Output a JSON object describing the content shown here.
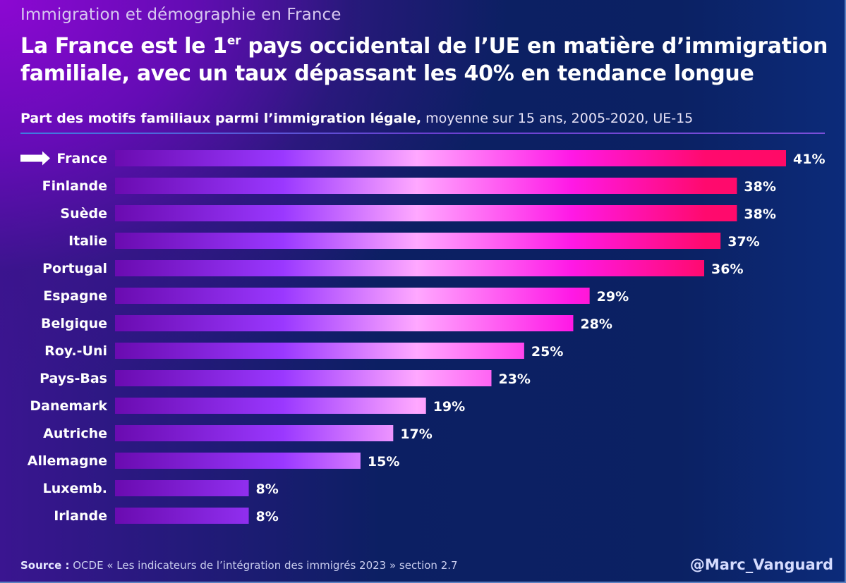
{
  "header": {
    "kicker": "Immigration et démographie en France",
    "title_part1": "La France est le 1",
    "title_sup": "er",
    "title_part2": " pays occidental de l’UE en matière d’immigration familiale, avec un taux dépassant les 40% en tendance longue",
    "subtitle_bold": "Part des motifs familiaux parmi l’immigration légale,",
    "subtitle_rest": " moyenne sur 15 ans, 2005-2020, UE-15"
  },
  "footer": {
    "source_label": "Source :",
    "source_text": " OCDE « Les indicateurs de l’intégration des immigrés 2023 »  section 2.7",
    "handle": "@Marc_Vanguard"
  },
  "colors": {
    "bar_gradient": [
      "#6a0bb0",
      "#9a38ff",
      "#ffa8ff",
      "#ff19e6",
      "#ff0a6e"
    ],
    "text": "#ffffff",
    "highlight_arrow": "#ffffff"
  },
  "chart_data": {
    "type": "bar",
    "orientation": "horizontal",
    "title": "Part des motifs familiaux parmi l’immigration légale, moyenne sur 15 ans, 2005-2020, UE-15",
    "xlabel": "",
    "ylabel": "",
    "unit": "%",
    "xlim": [
      0,
      41
    ],
    "grid": false,
    "highlight": "France",
    "categories": [
      "France",
      "Finlande",
      "Suède",
      "Italie",
      "Portugal",
      "Espagne",
      "Belgique",
      "Roy.-Uni",
      "Pays-Bas",
      "Danemark",
      "Autriche",
      "Allemagne",
      "Luxemb.",
      "Irlande"
    ],
    "values": [
      41,
      38,
      38,
      37,
      36,
      29,
      28,
      25,
      23,
      19,
      17,
      15,
      8,
      8
    ],
    "value_labels": [
      "41%",
      "38%",
      "38%",
      "37%",
      "36%",
      "29%",
      "28%",
      "25%",
      "23%",
      "19%",
      "17%",
      "15%",
      "8%",
      "8%"
    ]
  }
}
